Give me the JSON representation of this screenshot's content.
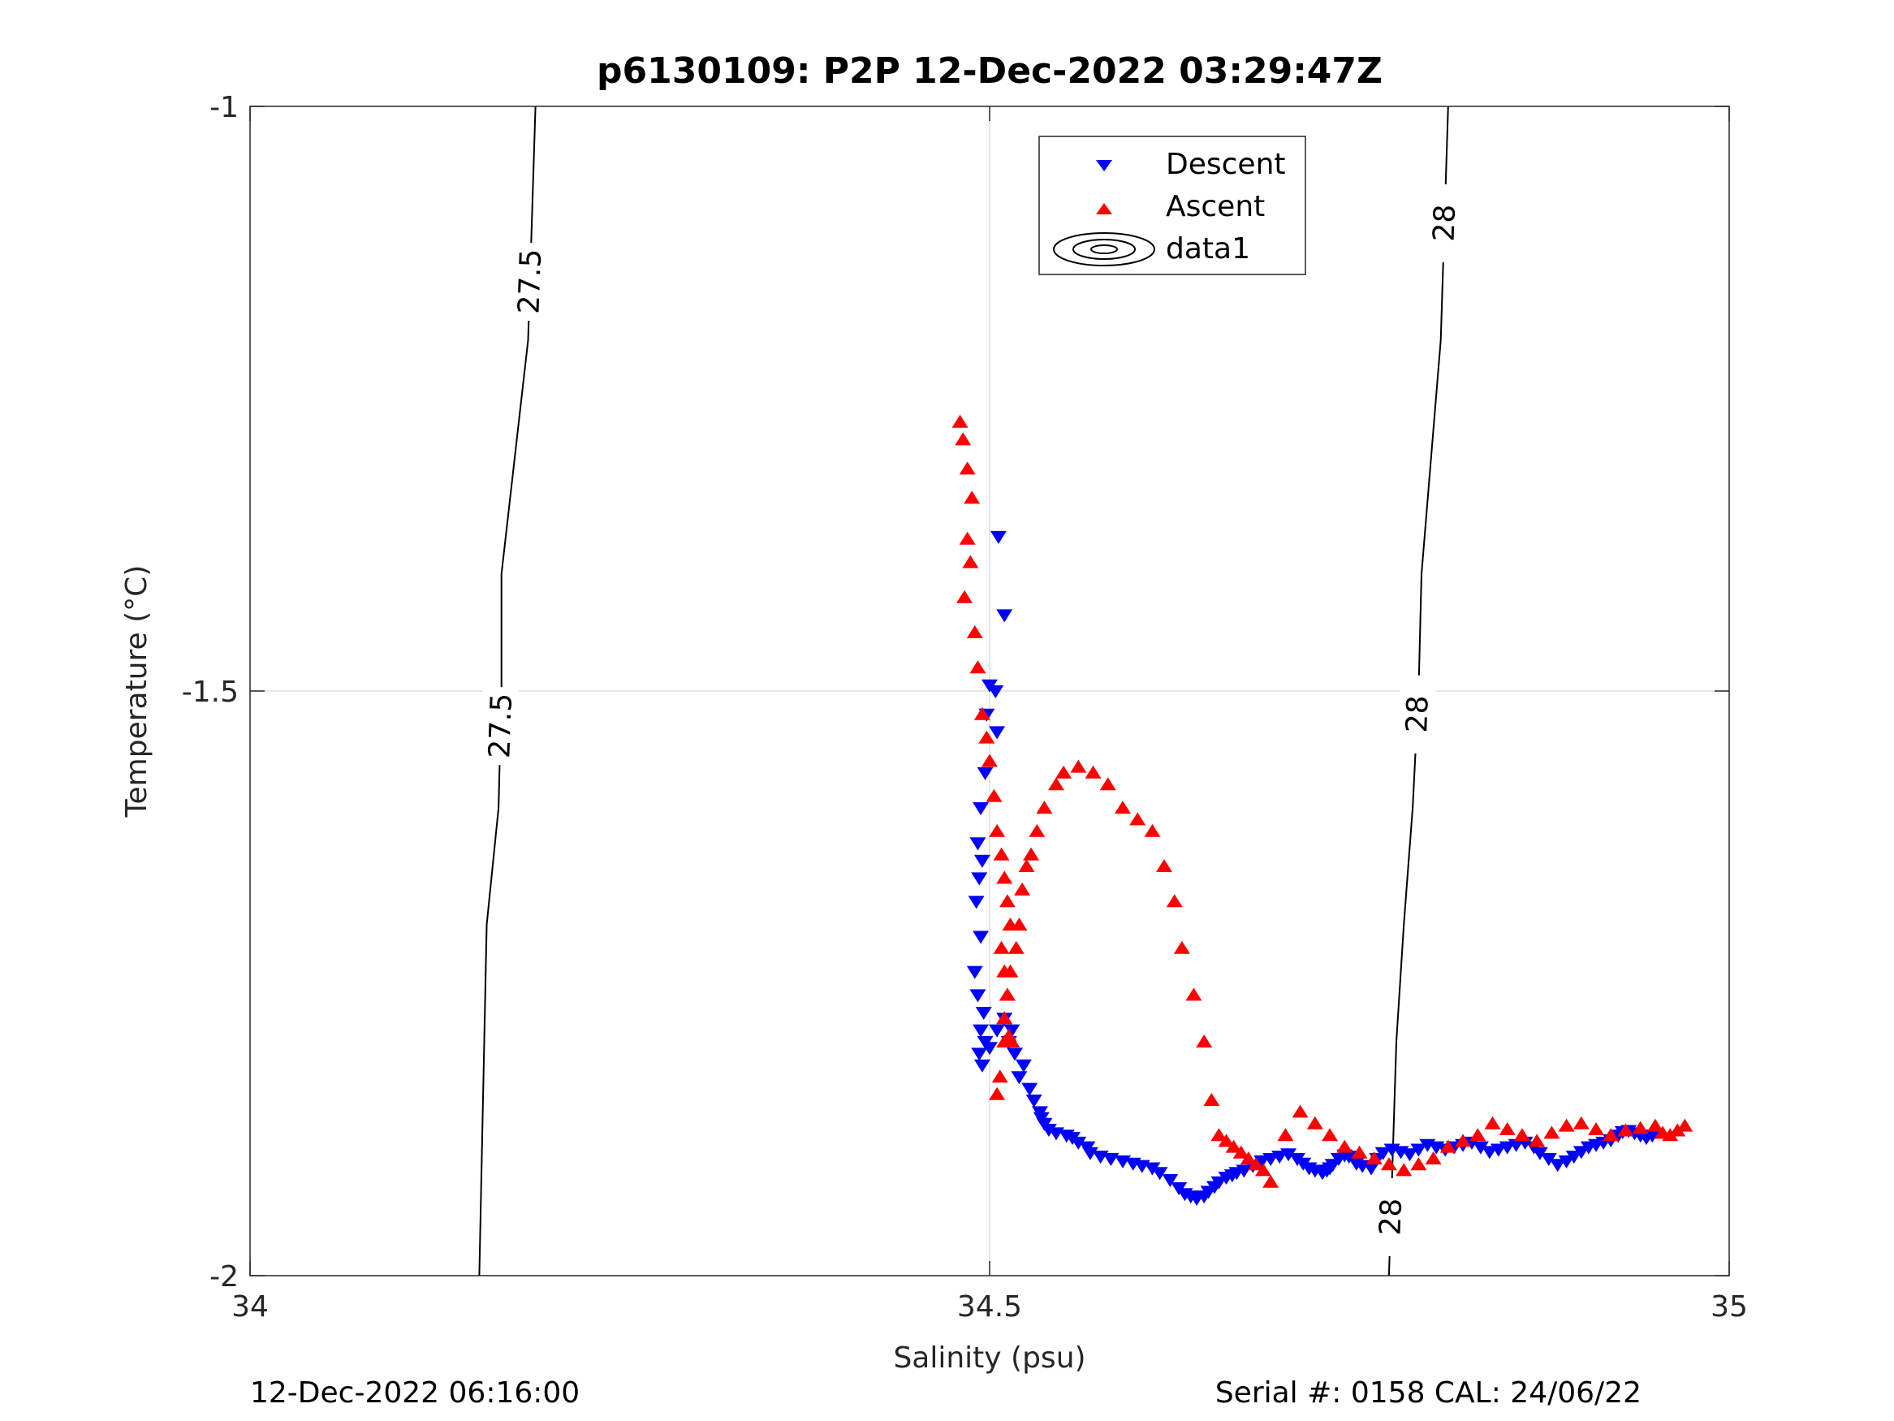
{
  "chart_data": {
    "type": "scatter",
    "title": "p6130109: P2P 12-Dec-2022 03:29:47Z",
    "xlabel": "Salinity (psu)",
    "ylabel": "Temperature (°C)",
    "xlim": [
      34,
      35
    ],
    "ylim": [
      -2,
      -1
    ],
    "xticks": [
      34,
      34.5,
      35
    ],
    "xtick_labels": [
      "34",
      "34.5",
      "35"
    ],
    "yticks": [
      -2,
      -1.5,
      -1
    ],
    "ytick_labels": [
      "-2",
      "-1.5",
      "-1"
    ],
    "grid": true,
    "legend": {
      "placement": "top-center",
      "entries": [
        "Descent",
        "Ascent",
        "data1"
      ]
    },
    "series": [
      {
        "name": "Descent",
        "marker": "triangle-down",
        "color": "#0000ff",
        "x": [
          34.506,
          34.51,
          34.504,
          34.498,
          34.5,
          34.505,
          34.497,
          34.494,
          34.492,
          34.495,
          34.493,
          34.491,
          34.494,
          34.49,
          34.492,
          34.496,
          34.494,
          34.497,
          34.493,
          34.495,
          34.5,
          34.505,
          34.51,
          34.515,
          34.513,
          34.517,
          34.523,
          34.52,
          34.527,
          34.53,
          34.534,
          34.535,
          34.537,
          34.54,
          34.545,
          34.552,
          34.556,
          34.56,
          34.566,
          34.568,
          34.575,
          34.582,
          34.59,
          34.597,
          34.603,
          34.61,
          34.615,
          34.622,
          34.628,
          34.632,
          34.636,
          34.64,
          34.645,
          34.648,
          34.652,
          34.655,
          34.66,
          34.664,
          34.667,
          34.672,
          34.678,
          34.684,
          34.69,
          34.696,
          34.702,
          34.708,
          34.712,
          34.716,
          34.72,
          34.725,
          34.728,
          34.73,
          34.732,
          34.736,
          34.74,
          34.743,
          34.746,
          34.748,
          34.752,
          34.758,
          34.762,
          34.766,
          34.772,
          34.778,
          34.784,
          34.79,
          34.796,
          34.802,
          34.808,
          34.814,
          34.82,
          34.826,
          34.832,
          34.838,
          34.844,
          34.85,
          34.856,
          34.862,
          34.868,
          34.872,
          34.878,
          34.884,
          34.89,
          34.895,
          34.9,
          34.905,
          34.91,
          34.915,
          34.92,
          34.925,
          34.928,
          34.932,
          34.936,
          34.94,
          34.944,
          34.948
        ],
        "y": [
          -1.368,
          -1.435,
          -1.5,
          -1.52,
          -1.495,
          -1.535,
          -1.57,
          -1.6,
          -1.63,
          -1.645,
          -1.66,
          -1.68,
          -1.71,
          -1.74,
          -1.76,
          -1.775,
          -1.79,
          -1.8,
          -1.81,
          -1.82,
          -1.805,
          -1.79,
          -1.78,
          -1.79,
          -1.8,
          -1.81,
          -1.82,
          -1.83,
          -1.84,
          -1.85,
          -1.86,
          -1.865,
          -1.87,
          -1.875,
          -1.878,
          -1.88,
          -1.882,
          -1.886,
          -1.89,
          -1.895,
          -1.898,
          -1.9,
          -1.902,
          -1.904,
          -1.906,
          -1.908,
          -1.912,
          -1.918,
          -1.925,
          -1.93,
          -1.932,
          -1.934,
          -1.932,
          -1.928,
          -1.924,
          -1.92,
          -1.916,
          -1.914,
          -1.912,
          -1.91,
          -1.906,
          -1.902,
          -1.9,
          -1.898,
          -1.896,
          -1.9,
          -1.904,
          -1.908,
          -1.91,
          -1.912,
          -1.91,
          -1.908,
          -1.905,
          -1.9,
          -1.897,
          -1.898,
          -1.9,
          -1.904,
          -1.906,
          -1.908,
          -1.9,
          -1.895,
          -1.892,
          -1.894,
          -1.896,
          -1.892,
          -1.888,
          -1.89,
          -1.892,
          -1.89,
          -1.888,
          -1.886,
          -1.89,
          -1.894,
          -1.892,
          -1.89,
          -1.888,
          -1.886,
          -1.89,
          -1.895,
          -1.9,
          -1.905,
          -1.902,
          -1.898,
          -1.894,
          -1.89,
          -1.888,
          -1.886,
          -1.884,
          -1.88,
          -1.877,
          -1.876,
          -1.878,
          -1.88,
          -1.882,
          -1.88
        ]
      },
      {
        "name": "Ascent",
        "marker": "triangle-up",
        "color": "#ff0000",
        "x": [
          34.48,
          34.482,
          34.485,
          34.488,
          34.485,
          34.487,
          34.483,
          34.49,
          34.492,
          34.495,
          34.498,
          34.5,
          34.503,
          34.505,
          34.508,
          34.51,
          34.512,
          34.514,
          34.508,
          34.51,
          34.512,
          34.51,
          34.513,
          34.515,
          34.512,
          34.51,
          34.507,
          34.505,
          34.51,
          34.512,
          34.514,
          34.518,
          34.52,
          34.522,
          34.525,
          34.528,
          34.532,
          34.537,
          34.545,
          34.55,
          34.56,
          34.57,
          34.58,
          34.59,
          34.6,
          34.61,
          34.618,
          34.625,
          34.63,
          34.638,
          34.645,
          34.65,
          34.655,
          34.66,
          34.665,
          34.67,
          34.675,
          34.68,
          34.685,
          34.69,
          34.7,
          34.71,
          34.72,
          34.73,
          34.74,
          34.75,
          34.76,
          34.77,
          34.78,
          34.79,
          34.8,
          34.81,
          34.82,
          34.83,
          34.84,
          34.85,
          34.86,
          34.87,
          34.88,
          34.89,
          34.9,
          34.91,
          34.92,
          34.93,
          34.94,
          34.95,
          34.955,
          34.96,
          34.965,
          34.97
        ],
        "y": [
          -1.27,
          -1.285,
          -1.31,
          -1.335,
          -1.37,
          -1.39,
          -1.42,
          -1.45,
          -1.48,
          -1.52,
          -1.54,
          -1.56,
          -1.59,
          -1.62,
          -1.64,
          -1.66,
          -1.68,
          -1.7,
          -1.72,
          -1.74,
          -1.76,
          -1.78,
          -1.795,
          -1.8,
          -1.8,
          -1.8,
          -1.83,
          -1.845,
          -1.78,
          -1.76,
          -1.74,
          -1.72,
          -1.7,
          -1.67,
          -1.65,
          -1.64,
          -1.62,
          -1.6,
          -1.58,
          -1.57,
          -1.565,
          -1.57,
          -1.58,
          -1.6,
          -1.61,
          -1.62,
          -1.65,
          -1.68,
          -1.72,
          -1.76,
          -1.8,
          -1.85,
          -1.88,
          -1.885,
          -1.89,
          -1.895,
          -1.9,
          -1.905,
          -1.91,
          -1.92,
          -1.88,
          -1.86,
          -1.87,
          -1.88,
          -1.89,
          -1.895,
          -1.9,
          -1.905,
          -1.91,
          -1.905,
          -1.9,
          -1.89,
          -1.885,
          -1.88,
          -1.87,
          -1.875,
          -1.88,
          -1.885,
          -1.878,
          -1.872,
          -1.87,
          -1.875,
          -1.88,
          -1.876,
          -1.874,
          -1.872,
          -1.878,
          -1.88,
          -1.876,
          -1.872
        ]
      },
      {
        "name": "data1",
        "type": "contour",
        "color": "#000000",
        "levels": [
          27.5,
          28
        ],
        "level_labels": [
          "27.5",
          "27.5",
          "28",
          "28",
          "28"
        ],
        "lines": [
          {
            "level": 27.5,
            "points": [
              [
                34.193,
                -1.0
              ],
              [
                34.188,
                -1.2
              ],
              [
                34.17,
                -1.4
              ],
              [
                34.17,
                -1.5
              ],
              [
                34.168,
                -1.6
              ],
              [
                34.16,
                -1.7
              ],
              [
                34.155,
                -2.0
              ]
            ]
          },
          {
            "level": 28,
            "points": [
              [
                34.81,
                -1.0
              ],
              [
                34.805,
                -1.2
              ],
              [
                34.792,
                -1.4
              ],
              [
                34.79,
                -1.5
              ],
              [
                34.786,
                -1.6
              ],
              [
                34.78,
                -1.7
              ],
              [
                34.775,
                -1.8
              ],
              [
                34.77,
                -2.0
              ]
            ]
          }
        ]
      }
    ]
  },
  "footer": {
    "left": "12-Dec-2022 06:16:00",
    "right": "Serial #: 0158  CAL: 24/06/22"
  }
}
